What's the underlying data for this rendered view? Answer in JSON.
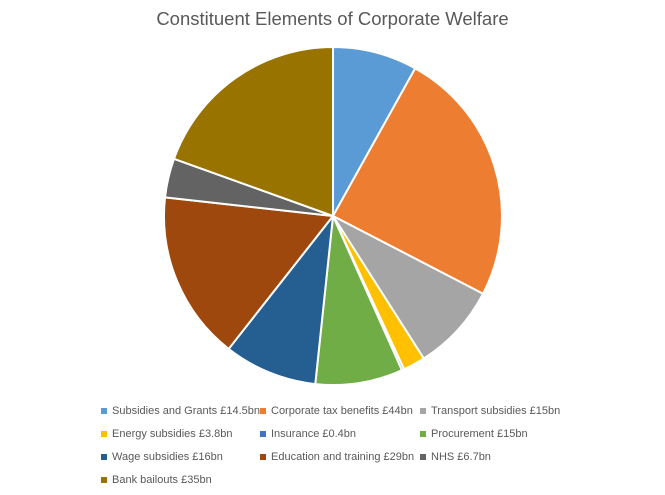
{
  "chart_data": {
    "type": "pie",
    "title": "Constituent Elements of Corporate Welfare",
    "legend_position": "bottom",
    "slices": [
      {
        "label": "Subsidies and Grants £14.5bn",
        "value": 14.5,
        "color": "#5B9BD5"
      },
      {
        "label": "Corporate tax benefits £44bn",
        "value": 44,
        "color": "#ED7D31"
      },
      {
        "label": "Transport subsidies £15bn",
        "value": 15,
        "color": "#A5A5A5"
      },
      {
        "label": "Energy subsidies £3.8bn",
        "value": 3.8,
        "color": "#FFC000"
      },
      {
        "label": "Insurance £0.4bn",
        "value": 0.4,
        "color": "#4472C4"
      },
      {
        "label": "Procurement £15bn",
        "value": 15,
        "color": "#70AD47"
      },
      {
        "label": "Wage subsidies £16bn",
        "value": 16,
        "color": "#255E91"
      },
      {
        "label": "Education and training £29bn",
        "value": 29,
        "color": "#9E480E"
      },
      {
        "label": "NHS £6.7bn",
        "value": 6.7,
        "color": "#636363"
      },
      {
        "label": "Bank bailouts £35bn",
        "value": 35,
        "color": "#997300"
      }
    ]
  }
}
